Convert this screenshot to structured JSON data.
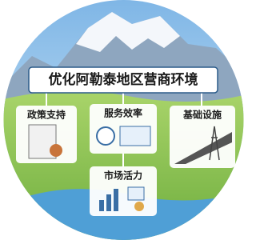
{
  "title": "优化阿勒泰地区营商环境",
  "nodes": [
    {
      "label": "政策支持"
    },
    {
      "label": "服务效率"
    },
    {
      "label": "基础设施"
    },
    {
      "label": "市场活力"
    }
  ]
}
